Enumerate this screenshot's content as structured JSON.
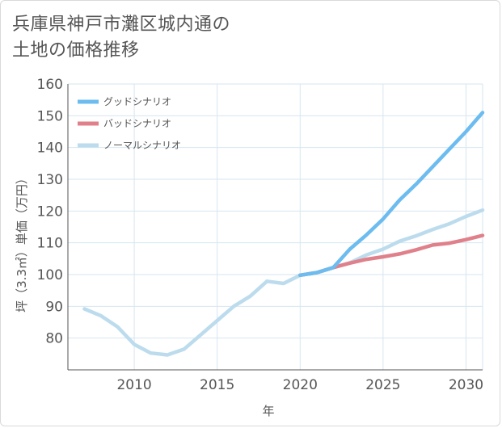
{
  "page": {
    "title_line1": "兵庫県神戸市灘区城内通の",
    "title_line2": "土地の価格推移"
  },
  "colors": {
    "good": "#6cbcf0",
    "bad": "#e0808a",
    "normal": "#bcdcee",
    "grid": "#d6e6f0",
    "axis": "#555555"
  },
  "chart_data": {
    "type": "line",
    "title": "兵庫県神戸市灘区城内通の土地の価格推移",
    "xlabel": "年",
    "ylabel": "坪（3.3㎡）単価（万円）",
    "xlim": [
      2006,
      2031
    ],
    "ylim": [
      70,
      160
    ],
    "x_ticks": [
      2010,
      2015,
      2020,
      2025,
      2030
    ],
    "y_ticks": [
      80,
      90,
      100,
      110,
      120,
      130,
      140,
      150,
      160
    ],
    "grid": true,
    "legend_position": "top-left",
    "series": [
      {
        "name": "グッドシナリオ",
        "color": "#6cbcf0",
        "points": [
          [
            2020,
            99.8
          ],
          [
            2021,
            100.6
          ],
          [
            2022,
            102.2
          ],
          [
            2023,
            108.0
          ],
          [
            2024,
            112.5
          ],
          [
            2025,
            117.5
          ],
          [
            2026,
            123.5
          ],
          [
            2027,
            128.5
          ],
          [
            2028,
            134.0
          ],
          [
            2029,
            139.5
          ],
          [
            2030,
            145.0
          ],
          [
            2031,
            151.0
          ]
        ]
      },
      {
        "name": "バッドシナリオ",
        "color": "#e0808a",
        "points": [
          [
            2020,
            99.8
          ],
          [
            2021,
            100.6
          ],
          [
            2022,
            102.2
          ],
          [
            2023,
            103.6
          ],
          [
            2024,
            104.8
          ],
          [
            2025,
            105.6
          ],
          [
            2026,
            106.5
          ],
          [
            2027,
            107.8
          ],
          [
            2028,
            109.3
          ],
          [
            2029,
            109.9
          ],
          [
            2030,
            111.0
          ],
          [
            2031,
            112.3
          ]
        ]
      },
      {
        "name": "ノーマルシナリオ",
        "color": "#bcdcee",
        "points": [
          [
            2007,
            89.2
          ],
          [
            2008,
            87.0
          ],
          [
            2009,
            83.5
          ],
          [
            2010,
            78.0
          ],
          [
            2011,
            75.3
          ],
          [
            2012,
            74.7
          ],
          [
            2013,
            76.5
          ],
          [
            2014,
            81.0
          ],
          [
            2015,
            85.5
          ],
          [
            2016,
            90.0
          ],
          [
            2017,
            93.2
          ],
          [
            2018,
            97.9
          ],
          [
            2019,
            97.2
          ],
          [
            2020,
            99.8
          ],
          [
            2021,
            100.6
          ],
          [
            2022,
            102.2
          ],
          [
            2023,
            103.7
          ],
          [
            2024,
            106.2
          ],
          [
            2025,
            108.0
          ],
          [
            2026,
            110.5
          ],
          [
            2027,
            112.2
          ],
          [
            2028,
            114.2
          ],
          [
            2029,
            116.0
          ],
          [
            2030,
            118.3
          ],
          [
            2031,
            120.3
          ]
        ]
      }
    ]
  }
}
